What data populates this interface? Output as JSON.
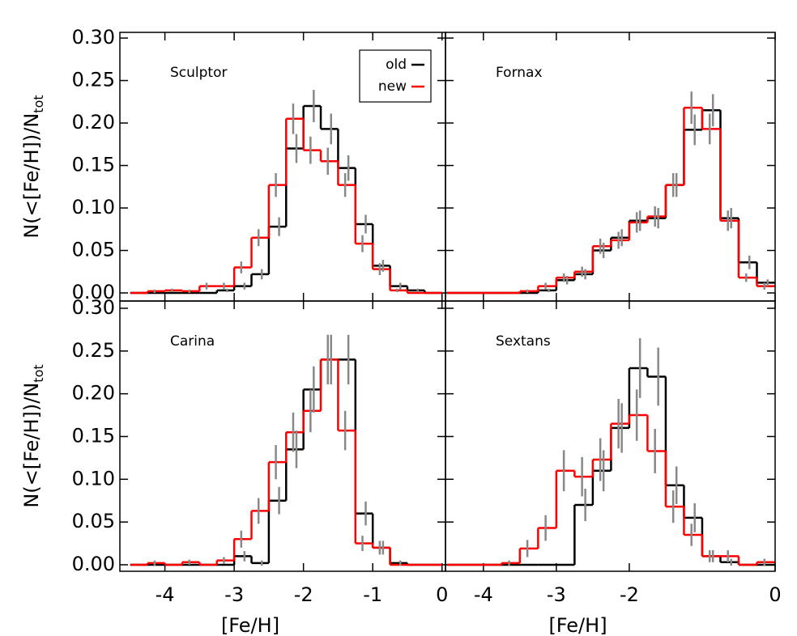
{
  "chart_data": [
    {
      "type": "step-histogram",
      "title": "Sculptor",
      "ylabel": {
        "text": "N(<[Fe/H])/N",
        "sub": "tot"
      },
      "ylim": [
        -0.0095,
        0.3067
      ],
      "yticks": [
        {
          "value": 0,
          "label": "0.00"
        },
        {
          "value": 0.05,
          "label": "0.05"
        },
        {
          "value": 0.1,
          "label": "0.10"
        },
        {
          "value": 0.15,
          "label": "0.15"
        },
        {
          "value": 0.2,
          "label": "0.20"
        },
        {
          "value": 0.25,
          "label": "0.25"
        },
        {
          "value": 0.3,
          "label": "0.30"
        }
      ],
      "legend": "upper right",
      "bins": [
        -4.5,
        -4.25,
        -4,
        -3.75,
        -3.5,
        -3.25,
        -3,
        -2.75,
        -2.5,
        -2.25,
        -2,
        -1.75,
        -1.5,
        -1.25,
        -1,
        -0.75,
        -0.5,
        -0.25,
        0
      ],
      "series": [
        {
          "name": "old",
          "color": "#000000",
          "values": [
            0,
            0,
            0,
            0,
            0,
            0.003,
            0.008,
            0.022,
            0.078,
            0.17,
            0.22,
            0.193,
            0.147,
            0.081,
            0.032,
            0.008,
            0.003,
            0
          ],
          "errors": [
            null,
            null,
            null,
            null,
            null,
            0.002,
            0.004,
            0.006,
            0.011,
            0.017,
            0.019,
            0.018,
            0.015,
            0.011,
            0.007,
            0.004,
            0.002,
            null
          ]
        },
        {
          "name": "new",
          "color": "#ff0000",
          "values": [
            0,
            0.002,
            0.003,
            0.002,
            0.008,
            0.008,
            0.03,
            0.065,
            0.127,
            0.205,
            0.168,
            0.155,
            0.127,
            0.058,
            0.028,
            0.003,
            0,
            0
          ],
          "errors": [
            null,
            0.002,
            0.002,
            0.002,
            0.004,
            0.004,
            0.007,
            0.01,
            0.014,
            0.018,
            0.016,
            0.016,
            0.014,
            0.01,
            0.007,
            0.002,
            null,
            null
          ]
        }
      ]
    },
    {
      "type": "step-histogram",
      "title": "Fornax",
      "bins": [
        -4.5,
        -4.25,
        -4,
        -3.75,
        -3.5,
        -3.25,
        -3,
        -2.75,
        -2.5,
        -2.25,
        -2,
        -1.75,
        -1.5,
        -1.25,
        -1,
        -0.75,
        -0.5,
        -0.25,
        0
      ],
      "series": [
        {
          "values": [
            0,
            0,
            0,
            0,
            0,
            0.003,
            0.015,
            0.022,
            0.05,
            0.065,
            0.085,
            0.088,
            0.127,
            0.192,
            0.215,
            0.088,
            0.036,
            0.012
          ],
          "errors": [
            null,
            null,
            null,
            null,
            null,
            0.002,
            0.005,
            0.006,
            0.009,
            0.01,
            0.012,
            0.012,
            0.014,
            0.018,
            0.019,
            0.012,
            0.008,
            0.004
          ]
        },
        {
          "values": [
            0,
            0,
            0,
            0,
            0.002,
            0.008,
            0.018,
            0.025,
            0.055,
            0.062,
            0.083,
            0.09,
            0.127,
            0.218,
            0.193,
            0.085,
            0.018,
            0.008
          ],
          "errors": [
            null,
            null,
            null,
            null,
            0.002,
            0.004,
            0.005,
            0.006,
            0.009,
            0.01,
            0.012,
            0.012,
            0.014,
            0.019,
            0.018,
            0.012,
            0.005,
            0.004
          ]
        }
      ]
    },
    {
      "type": "step-histogram",
      "title": "Carina",
      "xlabel": "[Fe/H]",
      "ylabel": {
        "text": "N(<[Fe/H])/N",
        "sub": "tot"
      },
      "xlim": [
        -4.65,
        0.05
      ],
      "xticks": [
        -4,
        -3,
        -2,
        -1,
        0
      ],
      "ylim": [
        -0.0076,
        0.3085
      ],
      "yticks": [
        {
          "value": 0,
          "label": "0.00"
        },
        {
          "value": 0.05,
          "label": "0.05"
        },
        {
          "value": 0.1,
          "label": "0.10"
        },
        {
          "value": 0.15,
          "label": "0.15"
        },
        {
          "value": 0.2,
          "label": "0.20"
        },
        {
          "value": 0.25,
          "label": "0.25"
        },
        {
          "value": 0.3,
          "label": "0.30"
        }
      ],
      "bins": [
        -4.5,
        -4.25,
        -4,
        -3.75,
        -3.5,
        -3.25,
        -3,
        -2.75,
        -2.5,
        -2.25,
        -2,
        -1.75,
        -1.5,
        -1.25,
        -1,
        -0.75,
        -0.5,
        -0.25,
        0
      ],
      "series": [
        {
          "values": [
            0,
            0,
            0,
            0,
            0,
            0,
            0.01,
            0.002,
            0.075,
            0.135,
            0.205,
            0.24,
            0.24,
            0.06,
            0.02,
            0.002,
            0,
            0
          ],
          "errors": [
            null,
            null,
            null,
            null,
            null,
            null,
            0.006,
            0.003,
            0.016,
            0.022,
            0.027,
            0.029,
            0.029,
            0.014,
            0.008,
            0.003,
            null,
            null
          ]
        },
        {
          "values": [
            0,
            0.002,
            0,
            0.003,
            0,
            0.005,
            0.03,
            0.063,
            0.12,
            0.155,
            0.18,
            0.24,
            0.157,
            0.025,
            0.02,
            0,
            0,
            0
          ],
          "errors": [
            null,
            0.003,
            null,
            0.003,
            null,
            0.004,
            0.01,
            0.015,
            0.02,
            0.023,
            0.025,
            0.029,
            0.023,
            0.009,
            0.008,
            null,
            null,
            null
          ]
        }
      ]
    },
    {
      "type": "step-histogram",
      "title": "Sextans",
      "xlabel": "[Fe/H]",
      "xlim": [
        -4.52,
        0
      ],
      "xticks": [
        -4,
        -3,
        -2,
        0
      ],
      "bins": [
        -4.5,
        -4.25,
        -4,
        -3.75,
        -3.5,
        -3.25,
        -3,
        -2.75,
        -2.5,
        -2.25,
        -2,
        -1.75,
        -1.5,
        -1.25,
        -1,
        -0.75,
        -0.5,
        -0.25,
        0
      ],
      "series": [
        {
          "values": [
            0,
            0,
            0,
            0,
            0,
            0,
            0,
            0.07,
            0.11,
            0.16,
            0.23,
            0.22,
            0.093,
            0.055,
            0.01,
            0.003,
            0,
            0
          ],
          "errors": [
            null,
            null,
            null,
            null,
            null,
            null,
            null,
            0.019,
            0.024,
            0.029,
            0.035,
            0.034,
            0.022,
            0.017,
            0.007,
            0.004,
            null,
            null
          ]
        },
        {
          "values": [
            0,
            0,
            0,
            0.002,
            0.019,
            0.043,
            0.11,
            0.103,
            0.123,
            0.165,
            0.175,
            0.133,
            0.068,
            0.035,
            0.01,
            0.01,
            0,
            0.003
          ],
          "errors": [
            null,
            null,
            null,
            0.003,
            0.01,
            0.015,
            0.024,
            0.023,
            0.025,
            0.029,
            0.03,
            0.026,
            0.019,
            0.013,
            0.007,
            0.007,
            null,
            0.004
          ]
        }
      ]
    }
  ]
}
